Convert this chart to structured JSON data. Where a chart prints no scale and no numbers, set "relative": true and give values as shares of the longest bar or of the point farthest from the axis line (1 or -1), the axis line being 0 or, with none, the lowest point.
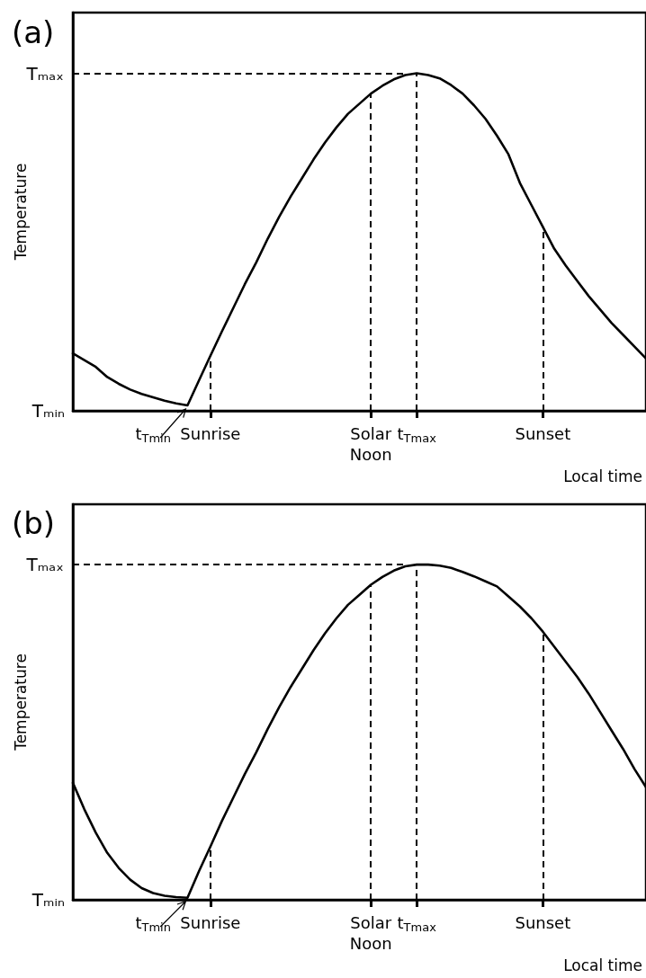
{
  "chart_data": [
    {
      "type": "line",
      "title": "(a)",
      "xlabel": "Local time",
      "ylabel": "Temperature",
      "relative": true,
      "categories": [
        null,
        null,
        null,
        null,
        null,
        null,
        null,
        "t$_{Tmin}$",
        null,
        null,
        null,
        null,
        "Sunrise",
        null,
        null,
        null,
        null,
        null,
        null,
        null,
        null,
        null,
        null,
        null,
        null,
        null,
        "Solar Noon",
        null,
        null,
        null,
        "t$_{Tmax}$",
        null,
        null,
        null,
        null,
        null,
        null,
        null,
        null,
        null,
        null,
        "Sunset",
        null,
        null,
        null,
        null,
        null,
        null,
        null,
        null,
        null
      ],
      "values": [
        0.17,
        0.15,
        0.13,
        0.1,
        0.08,
        0.063,
        0.05,
        0.04,
        0.03,
        0.022,
        0.016,
        0.09,
        0.163,
        0.235,
        0.305,
        0.375,
        0.44,
        0.51,
        0.575,
        0.635,
        0.69,
        0.745,
        0.795,
        0.84,
        0.88,
        0.91,
        0.94,
        0.963,
        0.982,
        0.995,
        1.0,
        0.995,
        0.985,
        0.965,
        0.94,
        0.905,
        0.865,
        0.815,
        0.76,
        0.675,
        0.61,
        0.545,
        0.48,
        0.43,
        0.385,
        0.34,
        0.3,
        0.26,
        0.225,
        0.19,
        0.155
      ],
      "color": "#000000",
      "marker": "none",
      "line_style": "solid",
      "grid": false,
      "annotations": [
        "Tₘᵢₙ"
      ],
      "ref_lines": [
        {
          "axis": "y",
          "value": 1,
          "label": "Tₘₐₓ",
          "color": "#000000",
          "line_style": "dashed"
        },
        {
          "axis": "x",
          "value": "Sunrise",
          "color": "#000000",
          "line_style": "dashed"
        },
        {
          "axis": "x",
          "value": "Solar Noon",
          "color": "#000000",
          "line_style": "dashed"
        },
        {
          "axis": "x",
          "value": "t$_{Tmax}$",
          "color": "#000000",
          "line_style": "dashed"
        },
        {
          "axis": "x",
          "value": "Sunset",
          "color": "#000000",
          "line_style": "dashed"
        }
      ]
    },
    {
      "type": "line",
      "title": "(b)",
      "xlabel": "Local time",
      "ylabel": "Temperature",
      "relative": true,
      "categories": [
        null,
        null,
        null,
        null,
        null,
        null,
        null,
        "t$_{Tmin}$",
        null,
        null,
        null,
        null,
        "Sunrise",
        null,
        null,
        null,
        null,
        null,
        null,
        null,
        null,
        null,
        null,
        null,
        null,
        null,
        "Solar Noon",
        null,
        null,
        null,
        "t$_{Tmax}$",
        null,
        null,
        null,
        null,
        null,
        null,
        null,
        null,
        null,
        null,
        "Sunset",
        null,
        null,
        null,
        null,
        null,
        null,
        null,
        null,
        null
      ],
      "values": [
        0.349,
        0.27,
        0.2,
        0.14,
        0.095,
        0.06,
        0.035,
        0.02,
        0.012,
        0.008,
        0.006,
        0.085,
        0.159,
        0.235,
        0.305,
        0.375,
        0.44,
        0.51,
        0.575,
        0.635,
        0.69,
        0.745,
        0.795,
        0.84,
        0.88,
        0.91,
        0.94,
        0.963,
        0.982,
        0.995,
        1.0,
        1.0,
        0.997,
        0.99,
        0.978,
        0.965,
        0.95,
        0.935,
        0.905,
        0.875,
        0.84,
        0.8,
        0.755,
        0.71,
        0.665,
        0.615,
        0.56,
        0.505,
        0.45,
        0.39,
        0.336
      ],
      "color": "#000000",
      "marker": "none",
      "line_style": "solid",
      "grid": false,
      "annotations": [
        "Tₘᵢₙ"
      ],
      "ref_lines": [
        {
          "axis": "y",
          "value": 1,
          "label": "Tₘₐₓ",
          "color": "#000000",
          "line_style": "dashed"
        },
        {
          "axis": "x",
          "value": "Sunrise",
          "color": "#000000",
          "line_style": "dashed"
        },
        {
          "axis": "x",
          "value": "Solar Noon",
          "color": "#000000",
          "line_style": "dashed"
        },
        {
          "axis": "x",
          "value": "t$_{Tmax}$",
          "color": "#000000",
          "line_style": "dashed"
        },
        {
          "axis": "x",
          "value": "Sunset",
          "color": "#000000",
          "line_style": "dashed"
        }
      ]
    }
  ]
}
